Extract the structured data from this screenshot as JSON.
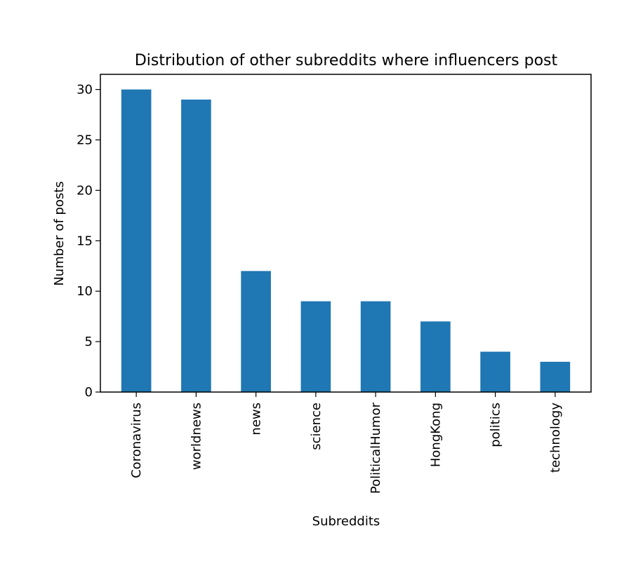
{
  "chart_data": {
    "type": "bar",
    "title": "Distribution of other subreddits where influencers post",
    "xlabel": "Subreddits",
    "ylabel": "Number of posts",
    "categories": [
      "Coronavirus",
      "worldnews",
      "news",
      "science",
      "PoliticalHumor",
      "HongKong",
      "politics",
      "technology"
    ],
    "values": [
      30,
      29,
      12,
      9,
      9,
      7,
      4,
      3
    ],
    "ylim": [
      0,
      31.5
    ],
    "yticks": [
      0,
      5,
      10,
      15,
      20,
      25,
      30
    ],
    "bar_color": "#1f77b4",
    "grid": false,
    "legend": "none"
  }
}
